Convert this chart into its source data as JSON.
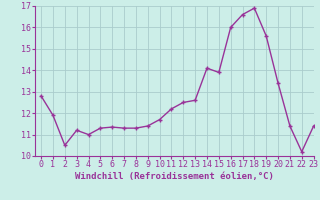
{
  "hours": [
    0,
    1,
    2,
    3,
    4,
    5,
    6,
    7,
    8,
    9,
    10,
    11,
    12,
    13,
    14,
    15,
    16,
    17,
    18,
    19,
    20,
    21,
    22,
    23
  ],
  "values": [
    12.8,
    11.9,
    10.5,
    11.2,
    11.0,
    11.3,
    11.35,
    11.3,
    11.3,
    11.4,
    11.7,
    12.2,
    12.5,
    12.6,
    14.1,
    13.9,
    16.0,
    16.6,
    16.9,
    15.6,
    13.4,
    11.4,
    10.2,
    11.4
  ],
  "line_color": "#993399",
  "marker": "+",
  "marker_size": 3,
  "linewidth": 1.0,
  "xlabel": "Windchill (Refroidissement éolien,°C)",
  "xlim": [
    -0.5,
    23
  ],
  "ylim": [
    10,
    17
  ],
  "yticks": [
    10,
    11,
    12,
    13,
    14,
    15,
    16,
    17
  ],
  "xticks": [
    0,
    1,
    2,
    3,
    4,
    5,
    6,
    7,
    8,
    9,
    10,
    11,
    12,
    13,
    14,
    15,
    16,
    17,
    18,
    19,
    20,
    21,
    22,
    23
  ],
  "background_color": "#cceee8",
  "grid_color": "#aacccc",
  "line_purple": "#993399",
  "font_size": 6.0,
  "xlabel_font_size": 6.5,
  "markeredgewidth": 1.0
}
